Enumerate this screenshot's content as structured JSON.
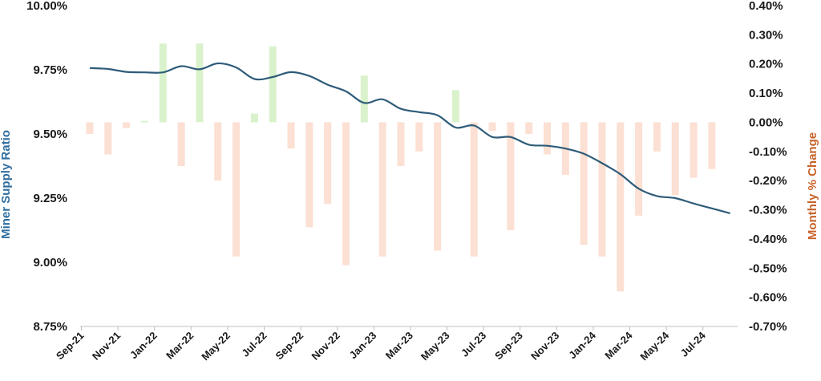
{
  "chart_data": {
    "type": "bar+line",
    "title": "",
    "xlabel": "",
    "ylabel_left": "Miner Supply Ratio",
    "ylabel_right": "Monthly % Change",
    "ylim_left": [
      8.75,
      10.0
    ],
    "ylim_right": [
      -0.7,
      0.4
    ],
    "yticks_left": [
      "10.00%",
      "9.75%",
      "9.50%",
      "9.25%",
      "9.00%",
      "8.75%"
    ],
    "yticks_right": [
      "0.40%",
      "0.30%",
      "0.20%",
      "0.10%",
      "0.00%",
      "-0.10%",
      "-0.20%",
      "-0.30%",
      "-0.40%",
      "-0.50%",
      "-0.60%",
      "-0.70%"
    ],
    "categories": [
      "Sep-21",
      "Oct-21",
      "Nov-21",
      "Dec-21",
      "Jan-22",
      "Feb-22",
      "Mar-22",
      "Apr-22",
      "May-22",
      "Jun-22",
      "Jul-22",
      "Aug-22",
      "Sep-22",
      "Oct-22",
      "Nov-22",
      "Dec-22",
      "Jan-23",
      "Feb-23",
      "Mar-23",
      "Apr-23",
      "May-23",
      "Jun-23",
      "Jul-23",
      "Aug-23",
      "Sep-23",
      "Oct-23",
      "Nov-23",
      "Dec-23",
      "Jan-24",
      "Feb-24",
      "Mar-24",
      "Apr-24",
      "May-24",
      "Jun-24",
      "Jul-24",
      "Aug-24"
    ],
    "x_tick_labels": [
      "Sep-21",
      "Nov-21",
      "Jan-22",
      "Mar-22",
      "May-22",
      "Jul-22",
      "Sep-22",
      "Nov-22",
      "Jan-23",
      "Mar-23",
      "May-23",
      "Jul-23",
      "Sep-23",
      "Nov-23",
      "Jan-24",
      "Mar-24",
      "May-24",
      "Jul-24"
    ],
    "series": [
      {
        "name": "Monthly % Change",
        "type": "bar",
        "axis": "right",
        "values": [
          -0.04,
          -0.11,
          -0.02,
          0.005,
          0.27,
          -0.15,
          0.27,
          -0.2,
          -0.46,
          0.03,
          0.26,
          -0.09,
          -0.36,
          -0.28,
          -0.49,
          0.16,
          -0.46,
          -0.15,
          -0.1,
          -0.44,
          0.11,
          -0.46,
          -0.03,
          -0.37,
          -0.04,
          -0.11,
          -0.18,
          -0.42,
          -0.46,
          -0.58,
          -0.32,
          -0.1,
          -0.25,
          -0.19,
          -0.16,
          0.0
        ],
        "positive_color": "#d9f2cc",
        "negative_color": "#fbe0d3"
      },
      {
        "name": "Miner Supply Ratio",
        "type": "line",
        "axis": "left",
        "values": [
          9.757,
          9.753,
          9.742,
          9.74,
          9.74,
          9.764,
          9.752,
          9.775,
          9.759,
          9.714,
          9.722,
          9.741,
          9.726,
          9.692,
          9.666,
          9.621,
          9.635,
          9.598,
          9.585,
          9.573,
          9.525,
          9.533,
          9.488,
          9.488,
          9.458,
          9.454,
          9.443,
          9.423,
          9.386,
          9.343,
          9.287,
          9.258,
          9.25,
          9.229,
          9.21,
          9.191
        ],
        "color": "#2e5c79"
      }
    ],
    "title_colors": {
      "left": "#2e6da0",
      "right": "#c8632a"
    },
    "grid": false
  }
}
